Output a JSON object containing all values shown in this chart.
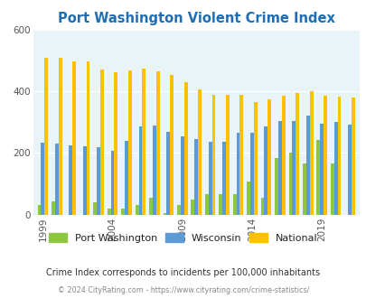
{
  "title": "Port Washington Violent Crime Index",
  "years": [
    1999,
    2000,
    2001,
    2002,
    2003,
    2004,
    2005,
    2006,
    2007,
    2008,
    2009,
    2010,
    2011,
    2012,
    2013,
    2014,
    2015,
    2016,
    2017,
    2018,
    2019,
    2020,
    2021
  ],
  "port_washington": [
    30,
    42,
    0,
    0,
    40,
    18,
    20,
    30,
    55,
    5,
    30,
    48,
    65,
    65,
    65,
    107,
    55,
    185,
    200,
    165,
    242,
    165,
    0
  ],
  "wisconsin": [
    232,
    230,
    225,
    222,
    220,
    208,
    240,
    285,
    290,
    270,
    255,
    245,
    235,
    235,
    265,
    265,
    285,
    305,
    305,
    320,
    295,
    300,
    292
  ],
  "national": [
    510,
    510,
    498,
    498,
    472,
    462,
    468,
    474,
    466,
    454,
    430,
    405,
    390,
    390,
    390,
    365,
    374,
    385,
    395,
    400,
    385,
    382,
    379
  ],
  "port_washington_color": "#8dc63f",
  "wisconsin_color": "#5b9bd5",
  "national_color": "#ffc000",
  "bg_color": "#e8f4f8",
  "ylim": [
    0,
    600
  ],
  "yticks": [
    0,
    200,
    400,
    600
  ],
  "title_color": "#1f6eb5",
  "subtitle": "Crime Index corresponds to incidents per 100,000 inhabitants",
  "footer": "© 2024 CityRating.com - https://www.cityrating.com/crime-statistics/",
  "legend_labels": [
    "Port Washington",
    "Wisconsin",
    "National"
  ],
  "bar_width": 0.25,
  "xtick_years": [
    1999,
    2004,
    2009,
    2014,
    2019
  ]
}
